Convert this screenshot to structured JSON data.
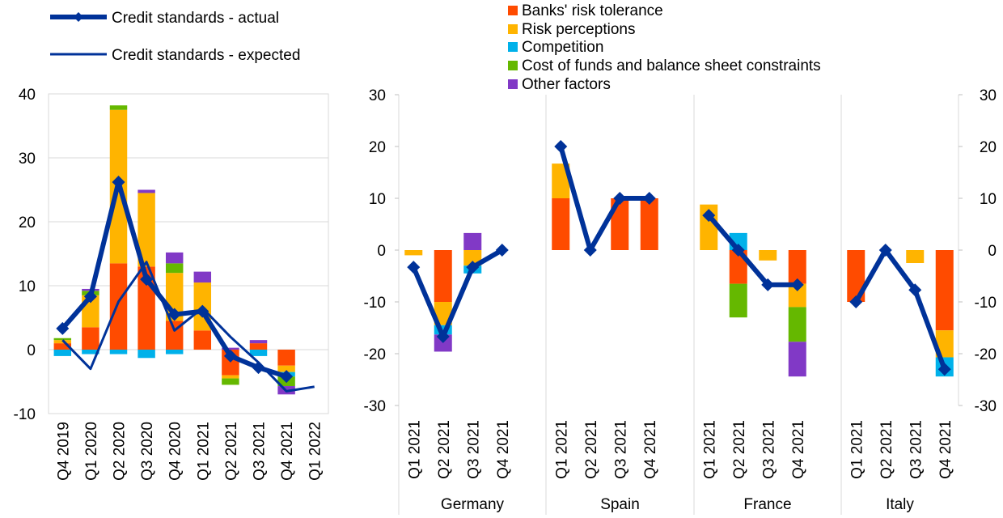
{
  "colors": {
    "banks_risk_tolerance": "#FF4B00",
    "risk_perceptions": "#FFB400",
    "competition": "#00B1EA",
    "cost_of_funds": "#65B800",
    "other_factors": "#8139C6",
    "actual_line": "#003299",
    "expected_line": "#003299",
    "grid": "#D9D9D9"
  },
  "legend_lines": [
    "Credit standards - actual",
    "Credit standards - expected"
  ],
  "legend_bars": [
    "Banks' risk tolerance",
    "Risk perceptions",
    "Competition",
    "Cost of funds and balance sheet constraints",
    "Other factors"
  ],
  "chart_data": [
    {
      "type": "bar",
      "stacked": true,
      "categories": [
        "Q4 2019",
        "Q1 2020",
        "Q2 2020",
        "Q3 2020",
        "Q4 2020",
        "Q1 2021",
        "Q2 2021",
        "Q3 2021",
        "Q4 2021",
        "Q1 2022"
      ],
      "ylim": [
        -10,
        40
      ],
      "yticks": [
        "-10",
        "0",
        "10",
        "20",
        "30",
        "40"
      ],
      "series": [
        {
          "name": "Banks' risk tolerance",
          "values": [
            1.0,
            3.5,
            13.5,
            13.0,
            4.5,
            3.0,
            -4.0,
            1.0,
            -2.5,
            null
          ]
        },
        {
          "name": "Risk perceptions",
          "values": [
            0.5,
            5.0,
            24.0,
            11.5,
            7.5,
            7.5,
            -0.5,
            0.0,
            -1.0,
            null
          ]
        },
        {
          "name": "Competition",
          "values": [
            -1.0,
            -0.7,
            -0.7,
            -1.3,
            -0.7,
            0.0,
            0.0,
            -1.0,
            -0.7,
            null
          ]
        },
        {
          "name": "Cost of funds and balance sheet constraints",
          "values": [
            0.3,
            0.7,
            0.7,
            0.0,
            1.5,
            0.0,
            -1.0,
            0.0,
            -1.5,
            null
          ]
        },
        {
          "name": "Other factors",
          "values": [
            0.0,
            0.3,
            0.0,
            0.5,
            1.7,
            1.7,
            0.3,
            0.5,
            -1.3,
            null
          ]
        },
        {
          "name": "Credit standards - actual",
          "type": "line",
          "values": [
            3.3,
            8.3,
            26.2,
            11.0,
            5.5,
            6.0,
            -1.0,
            -2.8,
            -4.2,
            null
          ]
        },
        {
          "name": "Credit standards - expected",
          "type": "line",
          "values": [
            1.5,
            -3.0,
            7.5,
            13.7,
            3.0,
            6.5,
            2.0,
            -2.0,
            -6.5,
            -5.8
          ]
        }
      ]
    },
    {
      "type": "bar",
      "stacked": true,
      "groups": [
        "Germany",
        "Spain",
        "France",
        "Italy"
      ],
      "categories": [
        "Q1 2021",
        "Q2 2021",
        "Q3 2021",
        "Q4 2021"
      ],
      "ylim": [
        -30,
        30
      ],
      "yticks": [
        "-30",
        "-20",
        "-10",
        "0",
        "10",
        "20",
        "30"
      ],
      "series": [
        {
          "name": "Banks' risk tolerance",
          "values": [
            [
              0,
              -10,
              0,
              0
            ],
            [
              10,
              0,
              10,
              10
            ],
            [
              0,
              -6.5,
              0,
              -6.5
            ],
            [
              -10,
              0,
              0,
              -15.5
            ]
          ]
        },
        {
          "name": "Risk perceptions",
          "values": [
            [
              -1,
              -4.5,
              -3,
              0
            ],
            [
              6.7,
              0,
              0,
              0
            ],
            [
              8.8,
              0,
              -2,
              -4.5
            ],
            [
              0,
              0,
              -2.5,
              -5.2
            ]
          ]
        },
        {
          "name": "Competition",
          "values": [
            [
              0,
              -1.8,
              -1.5,
              0
            ],
            [
              0,
              0,
              0,
              0
            ],
            [
              0,
              3.3,
              0,
              0
            ],
            [
              0,
              0,
              0,
              -3.7
            ]
          ]
        },
        {
          "name": "Cost of funds and balance sheet constraints",
          "values": [
            [
              0,
              0,
              0,
              0
            ],
            [
              0,
              0,
              0,
              0
            ],
            [
              0,
              -6.5,
              0,
              -6.7
            ],
            [
              0,
              0,
              0,
              0
            ]
          ]
        },
        {
          "name": "Other factors",
          "values": [
            [
              0,
              -3.3,
              3.3,
              0
            ],
            [
              0,
              0,
              0,
              0
            ],
            [
              0,
              0,
              0,
              -6.7
            ],
            [
              0,
              0,
              0,
              0
            ]
          ]
        },
        {
          "name": "Credit standards - actual",
          "type": "line",
          "values": [
            [
              -3.3,
              -16.7,
              -3.3,
              0
            ],
            [
              20,
              0,
              10,
              10
            ],
            [
              6.7,
              0,
              -6.7,
              -6.7
            ],
            [
              -10,
              0,
              -7.7,
              -23
            ]
          ]
        }
      ]
    }
  ]
}
